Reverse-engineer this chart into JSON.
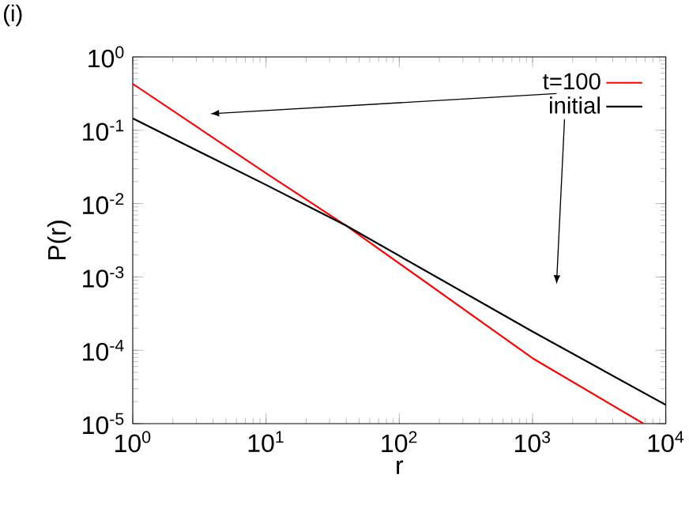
{
  "chart_data": {
    "type": "line",
    "xlabel": "r",
    "ylabel": "P(r)",
    "log": "xy",
    "legend": "top right",
    "annotations": [
      "(i)"
    ],
    "xlim": [
      1,
      10000
    ],
    "ylim": [
      1e-05,
      1
    ],
    "xticks": [
      {
        "value": 1,
        "label": "10$^{0}$"
      },
      {
        "value": 10,
        "label": "10$^{1}$"
      },
      {
        "value": 100,
        "label": "10$^{2}$"
      },
      {
        "value": 1000,
        "label": "10$^{3}$"
      },
      {
        "value": 10000,
        "label": "10$^{4}$"
      }
    ],
    "yticks": [
      {
        "value": 1e-05,
        "label": "10$^{-5}$"
      },
      {
        "value": 0.0001,
        "label": "10$^{-4}$"
      },
      {
        "value": 0.001,
        "label": "10$^{-3}$"
      },
      {
        "value": 0.01,
        "label": "10$^{-2}$"
      },
      {
        "value": 0.1,
        "label": "10$^{-1}$"
      },
      {
        "value": 1,
        "label": "10$^{0}$"
      }
    ],
    "series": [
      {
        "name": "t=100",
        "color": "#ff0000",
        "x": [
          1,
          10,
          40,
          1000,
          6800
        ],
        "values": [
          0.43,
          0.026,
          0.005,
          7.8e-05,
          1e-05
        ]
      },
      {
        "name": "initial",
        "color": "#000000",
        "x": [
          1,
          10,
          40,
          1000,
          10000
        ],
        "values": [
          0.145,
          0.018,
          0.005,
          0.00018,
          1.8e-05
        ]
      }
    ]
  }
}
